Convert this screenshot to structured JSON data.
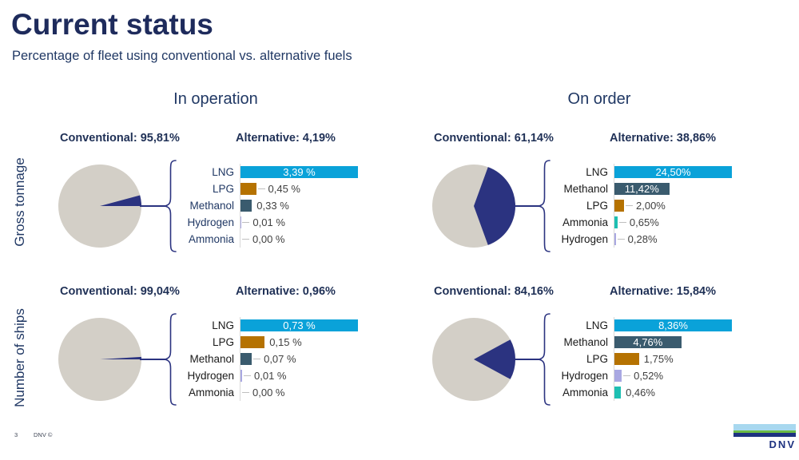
{
  "slide": {
    "title": "Current status",
    "subtitle": "Percentage of fleet using conventional vs. alternative fuels",
    "page_number": "3",
    "footer_brand": "DNV ©",
    "logo_text": "DNV"
  },
  "columns": [
    "In operation",
    "On order"
  ],
  "rows": [
    "Gross tonnage",
    "Number of ships"
  ],
  "colors": {
    "title_navy": "#1e2b5c",
    "text_navy": "#203864",
    "accent_navy": "#2b3380",
    "pie_gray": "#d3cfc7",
    "value_text": "#404040",
    "axis_gray": "#d9d9d9",
    "leader_gray": "#bfbfbf",
    "fuels": {
      "LNG": "#0aa2d9",
      "LPG": "#b57201",
      "Methanol": "#3a5b6e",
      "Hydrogen": "#a9a8e2",
      "Ammonia": "#1ebfb2"
    },
    "logo": {
      "light_blue": "#a8d8ef",
      "green": "#6cbb45",
      "dark_blue": "#1e3280"
    }
  },
  "chart_data": [
    {
      "type": "pie+bar",
      "section": "In operation",
      "metric": "Gross tonnage",
      "conventional_label": "Conventional: 95,81%",
      "alternative_label": "Alternative: 4,19%",
      "pie": {
        "conventional_pct": 95.81,
        "alternative_pct": 4.19,
        "wedge_start_deg": -15,
        "wedge_end_deg": 0
      },
      "bars": {
        "label_color": "#203864",
        "categories": [
          "LNG",
          "LPG",
          "Methanol",
          "Hydrogen",
          "Ammonia"
        ],
        "values": [
          3.39,
          0.45,
          0.33,
          0.01,
          0.0
        ],
        "value_labels": [
          "3,39 %",
          "0,45 %",
          "0,33 %",
          "0,01 %",
          "0,00 %"
        ],
        "leaders": [
          false,
          true,
          false,
          true,
          true
        ]
      }
    },
    {
      "type": "pie+bar",
      "section": "On order",
      "metric": "Gross tonnage",
      "conventional_label": "Conventional: 61,14%",
      "alternative_label": "Alternative: 38,86%",
      "pie": {
        "conventional_pct": 61.14,
        "alternative_pct": 38.86,
        "wedge_start_deg": -70,
        "wedge_end_deg": 70
      },
      "bars": {
        "label_color": "#1a1a1a",
        "categories": [
          "LNG",
          "Methanol",
          "LPG",
          "Ammonia",
          "Hydrogen"
        ],
        "values": [
          24.5,
          11.42,
          2.0,
          0.65,
          0.28
        ],
        "value_labels": [
          "24,50%",
          "11,42%",
          "2,00%",
          "0,65%",
          "0,28%"
        ],
        "leaders": [
          false,
          false,
          true,
          true,
          true
        ]
      }
    },
    {
      "type": "pie+bar",
      "section": "In operation",
      "metric": "Number of ships",
      "conventional_label": "Conventional: 99,04%",
      "alternative_label": "Alternative: 0,96%",
      "pie": {
        "conventional_pct": 99.04,
        "alternative_pct": 0.96,
        "wedge_start_deg": -3.5,
        "wedge_end_deg": 0
      },
      "bars": {
        "label_color": "#1a1a1a",
        "categories": [
          "LNG",
          "LPG",
          "Methanol",
          "Hydrogen",
          "Ammonia"
        ],
        "values": [
          0.73,
          0.15,
          0.07,
          0.01,
          0.0
        ],
        "value_labels": [
          "0,73 %",
          "0,15 %",
          "0,07 %",
          "0,01 %",
          "0,00 %"
        ],
        "leaders": [
          false,
          false,
          true,
          true,
          true
        ]
      }
    },
    {
      "type": "pie+bar",
      "section": "On order",
      "metric": "Number of ships",
      "conventional_label": "Conventional: 84,16%",
      "alternative_label": "Alternative: 15,84%",
      "pie": {
        "conventional_pct": 84.16,
        "alternative_pct": 15.84,
        "wedge_start_deg": -28.5,
        "wedge_end_deg": 28.5
      },
      "bars": {
        "label_color": "#1a1a1a",
        "categories": [
          "LNG",
          "Methanol",
          "LPG",
          "Hydrogen",
          "Ammonia"
        ],
        "values": [
          8.36,
          4.76,
          1.75,
          0.52,
          0.46
        ],
        "value_labels": [
          "8,36%",
          "4,76%",
          "1,75%",
          "0,52%",
          "0,46%"
        ],
        "leaders": [
          false,
          false,
          false,
          true,
          false
        ]
      }
    }
  ]
}
